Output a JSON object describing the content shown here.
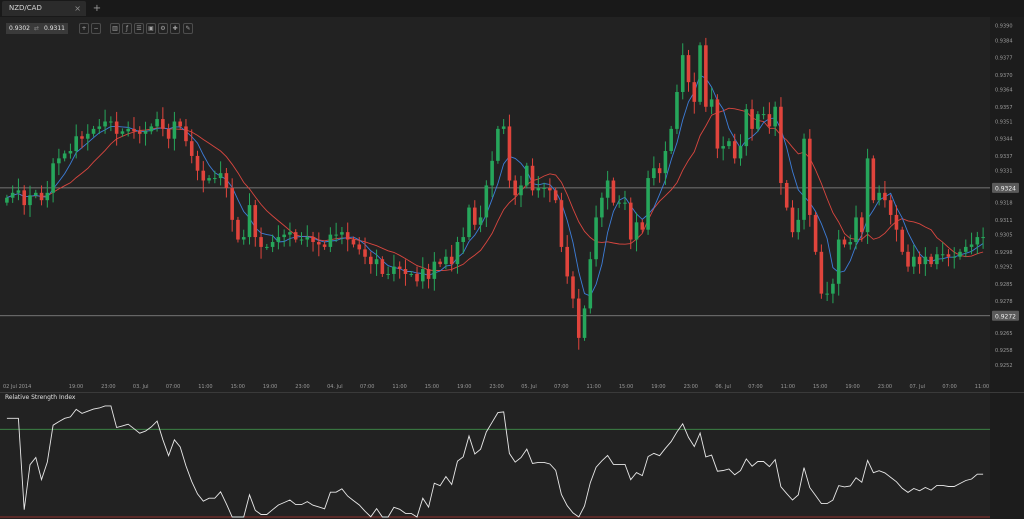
{
  "tab": {
    "title": "NZD/CAD",
    "close": "×",
    "add": "+"
  },
  "quote": {
    "bid": "0.9302",
    "icon": "swap-icon",
    "ask": "0.9311"
  },
  "toolbar": [
    {
      "name": "zoom-in-icon",
      "glyph": "+"
    },
    {
      "name": "zoom-out-icon",
      "glyph": "−"
    },
    {
      "name": "chart-type-icon",
      "glyph": "▥"
    },
    {
      "name": "indicators-icon",
      "glyph": "ƒ"
    },
    {
      "name": "template-icon",
      "glyph": "☰"
    },
    {
      "name": "screenshot-icon",
      "glyph": "▣"
    },
    {
      "name": "settings-icon",
      "glyph": "⚙"
    },
    {
      "name": "crosshair-icon",
      "glyph": "✚"
    },
    {
      "name": "drawing-icon",
      "glyph": "✎"
    }
  ],
  "rsi": {
    "title": "Relative Strength Index"
  },
  "colors": {
    "up": "#26a65b",
    "down": "#e0443c",
    "ma_red": "#d9463f",
    "ma_blue": "#3d7dd8",
    "level": "#8f8f8f",
    "bg": "#222222"
  },
  "chart_data": {
    "type": "candlestick",
    "symbol": "NZD/CAD",
    "x_tick_labels": [
      "02 Jul 2014",
      "19:00",
      "23:00",
      "03. Jul",
      "07:00",
      "11:00",
      "15:00",
      "19:00",
      "23:00",
      "04. Jul",
      "07:00",
      "11:00",
      "15:00",
      "19:00",
      "23:00",
      "05. Jul",
      "07:00",
      "11:00",
      "15:00",
      "19:00",
      "23:00",
      "06. Jul",
      "07:00",
      "11:00",
      "15:00",
      "19:00",
      "23:00",
      "07. Jul",
      "07:00",
      "11:00"
    ],
    "y_tick_labels": [
      "0.9390",
      "0.9384",
      "0.9377",
      "0.9370",
      "0.9364",
      "0.9357",
      "0.9351",
      "0.9344",
      "0.9337",
      "0.9331",
      "0.9324",
      "0.9318",
      "0.9311",
      "0.9305",
      "0.9298",
      "0.9292",
      "0.9285",
      "0.9278",
      "0.9272",
      "0.9265",
      "0.9258",
      "0.9252"
    ],
    "ylim": [
      0.92475,
      0.93935
    ],
    "horizontal_levels": [
      0.9324,
      0.9272
    ],
    "level_labels": [
      "0.9324",
      "0.9272"
    ],
    "closes": [
      0.932,
      0.9322,
      0.9323,
      0.9317,
      0.9321,
      0.9322,
      0.9319,
      0.9322,
      0.9334,
      0.9336,
      0.9338,
      0.9339,
      0.9345,
      0.9344,
      0.9346,
      0.9348,
      0.9349,
      0.9351,
      0.9351,
      0.9346,
      0.9347,
      0.9348,
      0.9347,
      0.9346,
      0.9347,
      0.9349,
      0.9352,
      0.9348,
      0.9344,
      0.9351,
      0.9349,
      0.9343,
      0.9337,
      0.9331,
      0.9327,
      0.9328,
      0.9328,
      0.933,
      0.9324,
      0.9311,
      0.9303,
      0.9304,
      0.9317,
      0.9304,
      0.93,
      0.93,
      0.9302,
      0.9304,
      0.9305,
      0.9306,
      0.9303,
      0.9303,
      0.9304,
      0.9302,
      0.9301,
      0.93,
      0.9305,
      0.9305,
      0.9306,
      0.9303,
      0.9301,
      0.9299,
      0.9296,
      0.9293,
      0.9295,
      0.9289,
      0.9289,
      0.9292,
      0.9291,
      0.9289,
      0.9289,
      0.9286,
      0.9291,
      0.9287,
      0.9294,
      0.9293,
      0.9296,
      0.9293,
      0.9302,
      0.9304,
      0.9316,
      0.9309,
      0.9312,
      0.9325,
      0.9335,
      0.9348,
      0.9349,
      0.9327,
      0.9321,
      0.9325,
      0.9333,
      0.9323,
      0.9324,
      0.9324,
      0.9323,
      0.9319,
      0.93,
      0.9288,
      0.9279,
      0.9263,
      0.9275,
      0.9295,
      0.9312,
      0.932,
      0.9327,
      0.9318,
      0.9318,
      0.9318,
      0.9303,
      0.931,
      0.9307,
      0.9328,
      0.9332,
      0.933,
      0.9339,
      0.9348,
      0.9363,
      0.9378,
      0.9367,
      0.9359,
      0.9382,
      0.9357,
      0.936,
      0.934,
      0.9341,
      0.9343,
      0.9336,
      0.9341,
      0.9356,
      0.9348,
      0.9354,
      0.9354,
      0.9349,
      0.9357,
      0.9326,
      0.9316,
      0.9306,
      0.9311,
      0.9344,
      0.9313,
      0.9298,
      0.9281,
      0.9281,
      0.9285,
      0.9303,
      0.9301,
      0.9302,
      0.9312,
      0.9306,
      0.9336,
      0.9319,
      0.9322,
      0.9319,
      0.9313,
      0.9307,
      0.9298,
      0.9292,
      0.9296,
      0.9293,
      0.9296,
      0.9293,
      0.9297,
      0.9297,
      0.9296,
      0.9296,
      0.9298,
      0.93,
      0.9301,
      0.9304,
      0.9304
    ]
  }
}
